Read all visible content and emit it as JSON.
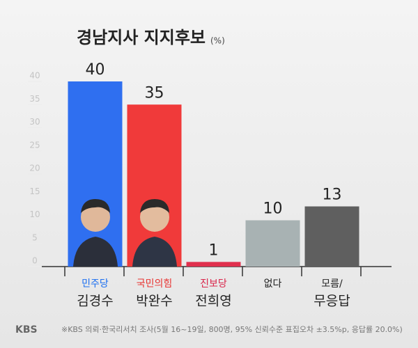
{
  "chart_data": {
    "type": "bar",
    "title": "경남지사 지지후보",
    "unit": "(%)",
    "categories": [
      [
        "민주당",
        "김경수"
      ],
      [
        "국민의힘",
        "박완수"
      ],
      [
        "진보당",
        "전희영"
      ],
      [
        "없다"
      ],
      [
        "모름/",
        "무응답"
      ]
    ],
    "category_colors": [
      "#1a6ef0",
      "#e8322f",
      "#d9254a",
      "#222222",
      "#222222"
    ],
    "values": [
      40,
      35,
      1,
      10,
      13
    ],
    "colors": [
      "#2f6ff0",
      "#f03a3a",
      "#e0304e",
      "#a8b2b3",
      "#5f5f5f"
    ],
    "ylim": [
      0,
      40
    ],
    "yticks": [
      0,
      5,
      10,
      15,
      20,
      25,
      30,
      35,
      40
    ],
    "logo": "KBS",
    "footnote": "※KBS 의뢰·한국리서치 조사(5월 16~19일, 800명, 95% 신뢰수준 표집오차 ±3.5%p, 응답률 20.0%)"
  }
}
